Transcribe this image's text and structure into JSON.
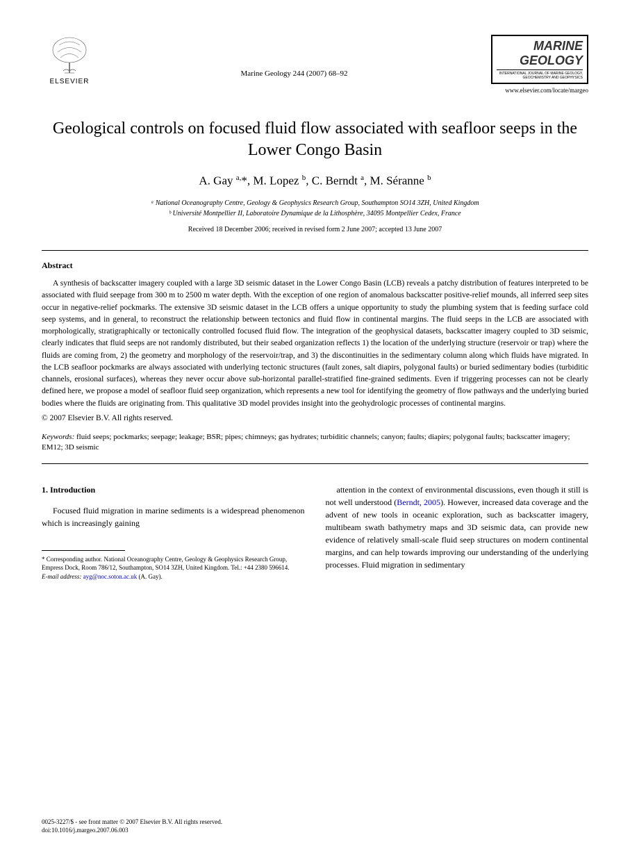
{
  "header": {
    "publisher": "ELSEVIER",
    "citation": "Marine Geology 244 (2007) 68–92",
    "journal_name_1": "MARINE",
    "journal_name_2": "GEOLOGY",
    "journal_tagline": "INTERNATIONAL JOURNAL OF MARINE GEOLOGY, GEOCHEMISTRY AND GEOPHYSICS",
    "journal_url": "www.elsevier.com/locate/margeo"
  },
  "article": {
    "title": "Geological controls on focused fluid flow associated with seafloor seeps in the Lower Congo Basin",
    "authors_html": "A. Gay <span class='sup'>a,</span>*, M. Lopez <span class='sup'>b</span>, C. Berndt <span class='sup'>a</span>, M. Séranne <span class='sup'>b</span>",
    "affiliation_a": "ᵃ National Oceanography Centre, Geology & Geophysics Research Group, Southampton SO14 3ZH, United Kingdom",
    "affiliation_b": "ᵇ Université Montpellier II, Laboratoire Dynamique de la Lithosphère, 34095 Montpellier Cedex, France",
    "dates": "Received 18 December 2006; received in revised form 2 June 2007; accepted 13 June 2007"
  },
  "abstract": {
    "heading": "Abstract",
    "body": "A synthesis of backscatter imagery coupled with a large 3D seismic dataset in the Lower Congo Basin (LCB) reveals a patchy distribution of features interpreted to be associated with fluid seepage from 300 m to 2500 m water depth. With the exception of one region of anomalous backscatter positive-relief mounds, all inferred seep sites occur in negative-relief pockmarks. The extensive 3D seismic dataset in the LCB offers a unique opportunity to study the plumbing system that is feeding surface cold seep systems, and in general, to reconstruct the relationship between tectonics and fluid flow in continental margins. The fluid seeps in the LCB are associated with morphologically, stratigraphically or tectonically controlled focused fluid flow. The integration of the geophysical datasets, backscatter imagery coupled to 3D seismic, clearly indicates that fluid seeps are not randomly distributed, but their seabed organization reflects 1) the location of the underlying structure (reservoir or trap) where the fluids are coming from, 2) the geometry and morphology of the reservoir/trap, and 3) the discontinuities in the sedimentary column along which fluids have migrated. In the LCB seafloor pockmarks are always associated with underlying tectonic structures (fault zones, salt diapirs, polygonal faults) or buried sedimentary bodies (turbiditic channels, erosional surfaces), whereas they never occur above sub-horizontal parallel-stratified fine-grained sediments. Even if triggering processes can not be clearly defined here, we propose a model of seafloor fluid seep organization, which represents a new tool for identifying the geometry of flow pathways and the underlying buried bodies where the fluids are originating from. This qualitative 3D model provides insight into the geohydrologic processes of continental margins.",
    "copyright": "© 2007 Elsevier B.V. All rights reserved."
  },
  "keywords": {
    "label": "Keywords:",
    "list": " fluid seeps; pockmarks; seepage; leakage; BSR; pipes; chimneys; gas hydrates; turbiditic channels; canyon; faults; diapirs; polygonal faults; backscatter imagery; EM12; 3D seismic"
  },
  "intro": {
    "heading": "1. Introduction",
    "col1": "Focused fluid migration in marine sediments is a widespread phenomenon which is increasingly gaining",
    "col2_part1": "attention in the context of environmental discussions, even though it still is not well understood (",
    "col2_link": "Berndt, 2005",
    "col2_part2": "). However, increased data coverage and the advent of new tools in oceanic exploration, such as backscatter imagery, multibeam swath bathymetry maps and 3D seismic data, can provide new evidence of relatively small-scale fluid seep structures on modern continental margins, and can help towards improving our understanding of the underlying processes. Fluid migration in sedimentary"
  },
  "footnote": {
    "corresponding": "* Corresponding author. National Oceanography Centre, Geology & Geophysics Research Group, Empress Dock, Room 786/12, Southampton, SO14 3ZH, United Kingdom. Tel.: +44 2380 596614.",
    "email_label": "E-mail address:",
    "email": "ayg@noc.soton.ac.uk",
    "email_suffix": " (A. Gay)."
  },
  "footer": {
    "line1": "0025-3227/$ - see front matter © 2007 Elsevier B.V. All rights reserved.",
    "line2": "doi:10.1016/j.margeo.2007.06.003"
  },
  "colors": {
    "text": "#000000",
    "background": "#ffffff",
    "link": "#0000cc",
    "logo_gray": "#555555"
  }
}
